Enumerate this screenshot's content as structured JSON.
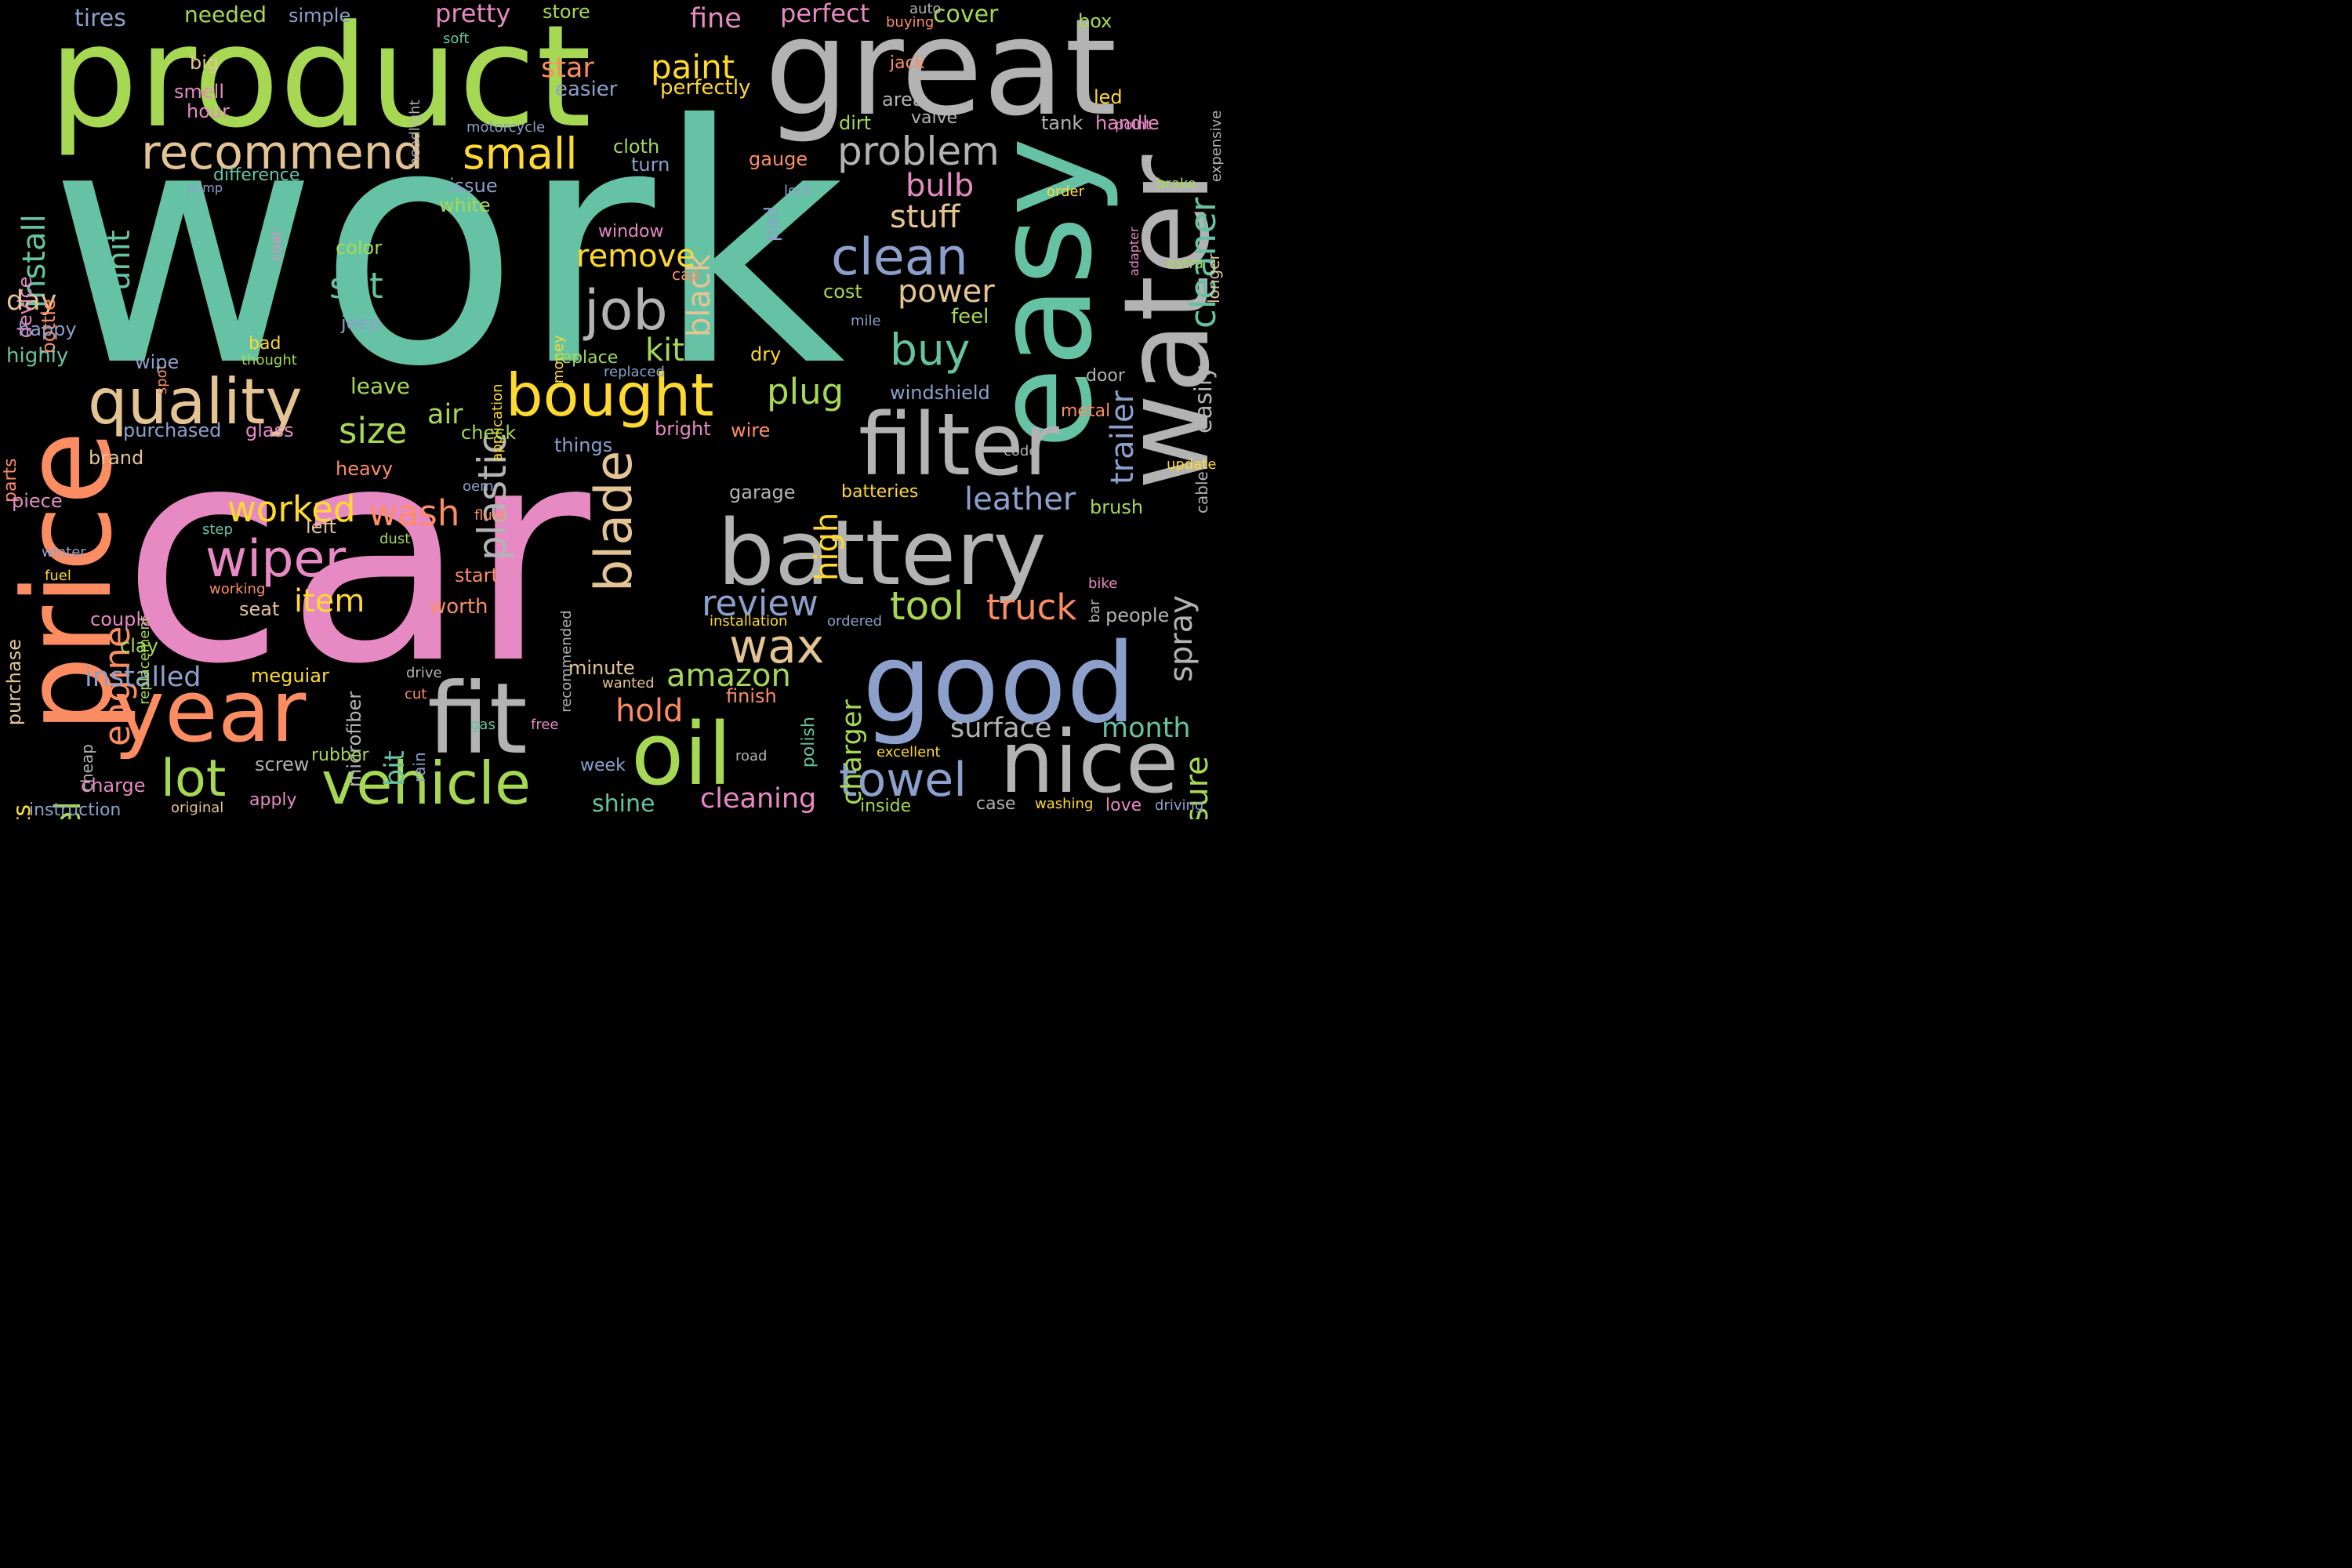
{
  "palette": {
    "background": "#000000",
    "teal": "#66c2a5",
    "orange": "#fc8d62",
    "blue": "#8da0cb",
    "pink": "#e78ac3",
    "green": "#a6d854",
    "yellow": "#ffd92f",
    "tan": "#e5c494",
    "gray": "#b3b3b3"
  },
  "words": [
    "work",
    "car",
    "product",
    "great",
    "easy",
    "water",
    "price",
    "good",
    "battery",
    "filter",
    "year",
    "fit",
    "oil",
    "nice",
    "quality",
    "vehicle",
    "recommend",
    "bought",
    "blade",
    "wiper",
    "clean",
    "job",
    "lot",
    "towel",
    "wax",
    "small",
    "paint",
    "buy",
    "problem",
    "amazon",
    "install",
    "cleaner",
    "plastic",
    "tool",
    "truck",
    "review",
    "remove",
    "engine",
    "wheel",
    "leather",
    "plug",
    "worked",
    "wash",
    "unit",
    "bulb",
    "stuff",
    "power",
    "set",
    "kit",
    "size",
    "item",
    "trailer",
    "spray",
    "pressure",
    "black",
    "air",
    "high",
    "charger",
    "hold",
    "installed",
    "bit",
    "day",
    "surface",
    "month",
    "cleaning",
    "shine",
    "lights",
    "easily",
    "star",
    "fine",
    "perfect",
    "cover",
    "needed",
    "pretty",
    "tires",
    "big",
    "simple",
    "store",
    "box",
    "soft",
    "smell",
    "easier",
    "perfectly",
    "hour",
    "jack",
    "led",
    "area",
    "valve",
    "cloth",
    "turn",
    "dirt",
    "tank",
    "handle",
    "gauge",
    "motorcycle",
    "difference",
    "issue",
    "white",
    "pump",
    "pad",
    "lock",
    "adapter",
    "brake",
    "order",
    "longer",
    "device",
    "bottle",
    "coat",
    "color",
    "window",
    "extra",
    "cap",
    "cost",
    "happy",
    "jeep",
    "feel",
    "highly",
    "mile",
    "spot",
    "wipe",
    "bad",
    "thought",
    "application",
    "money",
    "replace",
    "replaced",
    "dry",
    "door",
    "leave",
    "purchased",
    "glass",
    "bright",
    "wire",
    "check",
    "windshield",
    "metal",
    "parts",
    "brand",
    "things",
    "cable",
    "heavy",
    "code",
    "update",
    "piece",
    "garage",
    "batteries",
    "brush",
    "oem",
    "fluid",
    "step",
    "left",
    "dust",
    "replacement",
    "winter",
    "fuel",
    "purchase",
    "start",
    "working",
    "recommended",
    "bar",
    "bike",
    "seat",
    "installation",
    "ordered",
    "people",
    "worth",
    "couple",
    "clay",
    "microfiber",
    "minute",
    "meguiar",
    "drive",
    "wanted",
    "finish",
    "cut",
    "cheap",
    "rain",
    "gas",
    "free",
    "polish",
    "excellent",
    "rubber",
    "screw",
    "week",
    "road",
    "charge",
    "apply",
    "instruction",
    "original",
    "inside",
    "case",
    "washing",
    "love",
    "driving",
    "point",
    "expensive",
    "headlight",
    "auto",
    "buying"
  ],
  "count": 199
}
